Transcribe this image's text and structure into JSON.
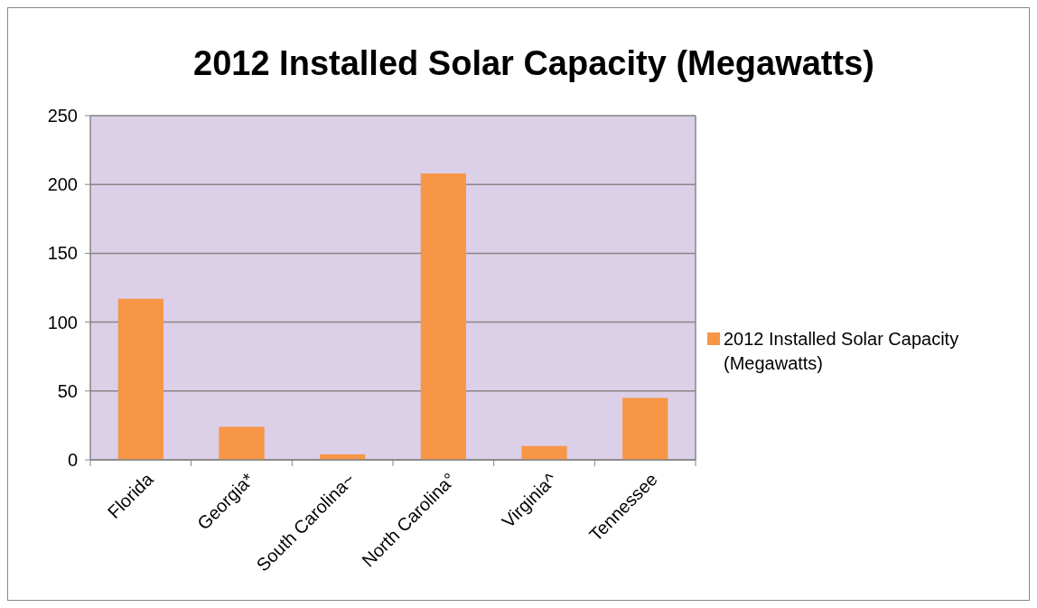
{
  "chart_data": {
    "type": "bar",
    "title": "2012 Installed Solar Capacity (Megawatts)",
    "categories": [
      "Florida",
      "Georgia*",
      "South Carolina~",
      "North Carolina°",
      "Virginia^",
      "Tennessee"
    ],
    "series": [
      {
        "name": "2012 Installed Solar Capacity (Megawatts)",
        "color": "#f79646",
        "values": [
          117,
          24,
          4,
          208,
          10,
          45
        ]
      }
    ],
    "ylim": [
      0,
      250
    ],
    "yticks": [
      0,
      50,
      100,
      150,
      200,
      250
    ],
    "grid": "y",
    "legend": "right"
  }
}
